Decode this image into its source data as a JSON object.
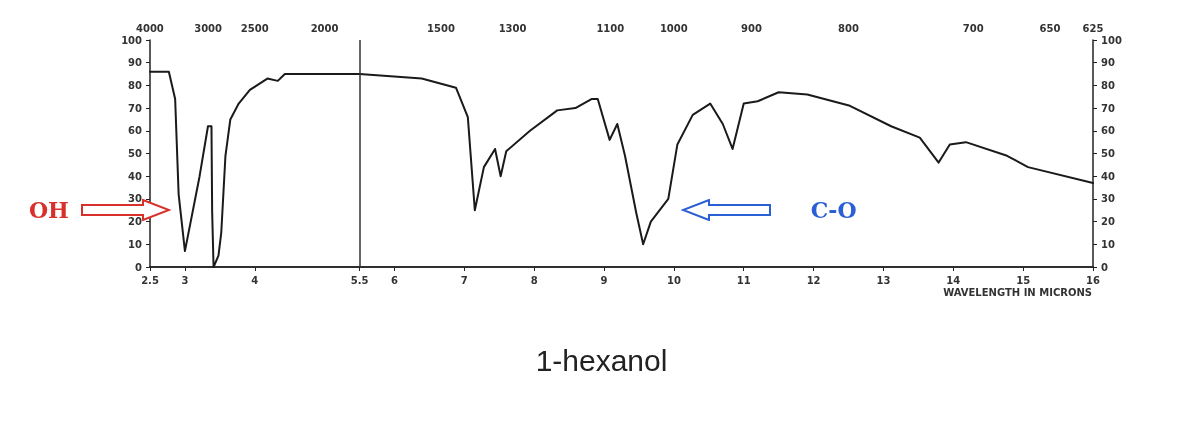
{
  "chart_data": {
    "type": "line",
    "title": "1-hexanol",
    "xlabel": "WAVELENGTH IN MICRONS",
    "x": [
      2.5,
      2.77,
      2.86,
      2.91,
      3.0,
      3.21,
      3.33,
      3.38,
      3.39,
      3.41,
      3.48,
      3.52,
      3.58,
      3.65,
      3.77,
      3.93,
      4.18,
      4.33,
      4.43,
      5.5,
      6.39,
      6.88,
      7.05,
      7.15,
      7.28,
      7.44,
      7.52,
      7.6,
      7.94,
      8.33,
      8.59,
      8.82,
      8.91,
      9.08,
      9.19,
      9.3,
      9.46,
      9.56,
      9.67,
      9.92,
      10.05,
      10.27,
      10.52,
      10.7,
      10.84,
      11.0,
      11.2,
      11.5,
      11.91,
      12.52,
      13.11,
      13.52,
      13.79,
      13.95,
      14.18,
      14.77,
      15.07,
      16.0
    ],
    "series": [
      {
        "color": "#1a1a1a",
        "values": [
          86,
          86,
          74,
          32,
          7,
          40,
          62,
          62,
          24,
          0,
          5,
          15,
          49,
          65,
          72,
          78,
          83,
          82,
          85,
          85,
          83,
          79,
          66,
          25,
          44,
          52,
          40,
          51,
          60,
          69,
          70,
          74,
          74,
          56,
          63,
          49,
          24,
          10,
          20,
          30,
          54,
          67,
          72,
          63,
          52,
          72,
          73,
          77,
          76,
          71,
          62,
          57,
          46,
          54,
          55,
          49,
          44,
          37
        ]
      }
    ],
    "xlim": [
      2.5,
      16
    ],
    "xticks": [
      {
        "value": 2.5,
        "label": "2.5"
      },
      3,
      4,
      {
        "value": 5.5,
        "label": "5.5"
      },
      6,
      7,
      8,
      9,
      10,
      11,
      12,
      13,
      14,
      15,
      16
    ],
    "ylim": [
      0,
      100
    ],
    "yticks": [
      0,
      10,
      20,
      30,
      40,
      50,
      60,
      70,
      80,
      90,
      100
    ],
    "y2lim": [
      0,
      100
    ],
    "y2ticks": [
      0,
      10,
      20,
      30,
      40,
      50,
      60,
      70,
      80,
      90,
      100
    ],
    "ref_lines": [
      {
        "axis": "x",
        "value": 5.5,
        "color": "#333333"
      }
    ],
    "annotations": [
      "OH",
      "C-O",
      "4000",
      "3000",
      "2500",
      "2000",
      "1500",
      "1300",
      "1100",
      "1000",
      "900",
      "800",
      "700",
      "650",
      "625"
    ],
    "grid": false,
    "marker": "none",
    "line_style": "solid"
  }
}
